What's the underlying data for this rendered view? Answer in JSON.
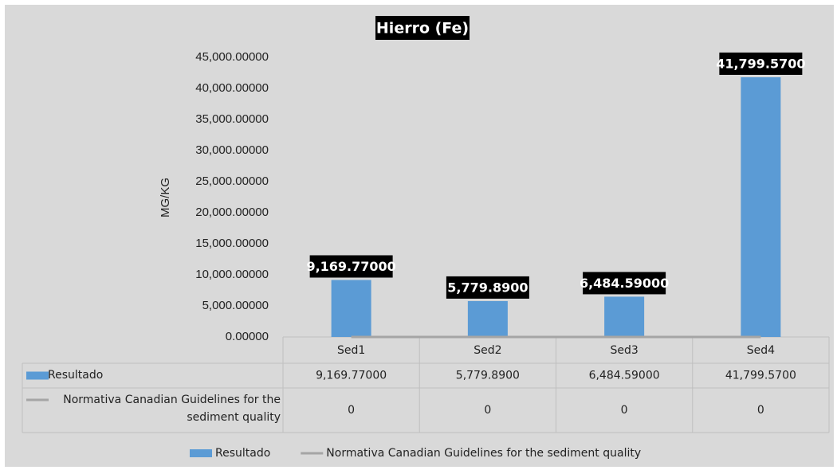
{
  "chart_data": {
    "type": "bar",
    "title": "Hierro (Fe)",
    "y_label": "MG/KG",
    "categories": [
      "Sed1",
      "Sed2",
      "Sed3",
      "Sed4"
    ],
    "series": [
      {
        "name": "Resultado",
        "type": "bar",
        "color": "#5b9bd5",
        "values": [
          9169.77,
          5779.89,
          6484.59,
          41799.57
        ],
        "value_labels": [
          "9,169.77000",
          "5,779.8900",
          "6,484.59000",
          "41,799.5700"
        ]
      },
      {
        "name": "Normativa Canadian Guidelines for the sediment quality",
        "type": "line",
        "color": "#a5a5a5",
        "values": [
          0,
          0,
          0,
          0
        ]
      }
    ],
    "ylim": [
      0,
      45000
    ],
    "yticks": [
      {
        "value": 0,
        "label": "0.00000"
      },
      {
        "value": 5000,
        "label": "5,000.00000"
      },
      {
        "value": 10000,
        "label": "10,000.00000"
      },
      {
        "value": 15000,
        "label": "15,000.00000"
      },
      {
        "value": 20000,
        "label": "20,000.00000"
      },
      {
        "value": 25000,
        "label": "25,000.00000"
      },
      {
        "value": 30000,
        "label": "30,000.00000"
      },
      {
        "value": 35000,
        "label": "35,000.00000"
      },
      {
        "value": 40000,
        "label": "40,000.00000"
      },
      {
        "value": 45000,
        "label": "45,000.00000"
      }
    ],
    "grid": false,
    "legend": "bottom",
    "data_table": true
  }
}
